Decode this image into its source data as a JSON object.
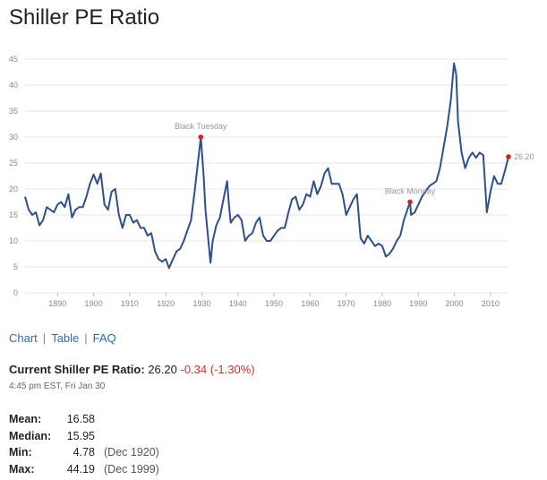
{
  "page": {
    "title": "Shiller PE Ratio"
  },
  "nav": {
    "chart": "Chart",
    "table": "Table",
    "faq": "FAQ",
    "separator": "|"
  },
  "current": {
    "label": "Current Shiller PE Ratio:",
    "value": "26.20",
    "change": "-0.34 (-1.30%)",
    "timestamp": "4:45 pm EST, Fri Jan 30"
  },
  "stats": [
    {
      "key": "Mean:",
      "value": "16.58",
      "date": ""
    },
    {
      "key": "Median:",
      "value": "15.95",
      "date": ""
    },
    {
      "key": "Min:",
      "value": "4.78",
      "date": "(Dec 1920)"
    },
    {
      "key": "Max:",
      "value": "44.19",
      "date": "(Dec 1999)"
    }
  ],
  "colors": {
    "line": "#2e4f8c",
    "marker": "#cc2222",
    "grid": "#e6e6e6",
    "link": "#2a6db5",
    "negative": "#c0392b"
  },
  "chart_data": {
    "type": "line",
    "xlim": [
      1881,
      2015
    ],
    "ylim": [
      0,
      45
    ],
    "xticks": [
      1890,
      1900,
      1910,
      1920,
      1930,
      1940,
      1950,
      1960,
      1970,
      1980,
      1990,
      2000,
      2010
    ],
    "yticks": [
      0,
      5,
      10,
      15,
      20,
      25,
      30,
      35,
      40,
      45
    ],
    "grid": "horizontal",
    "series": [
      {
        "x": [
          1881,
          1882,
          1883,
          1884,
          1885,
          1886,
          1887,
          1888,
          1889,
          1890,
          1891,
          1892,
          1893,
          1894,
          1895,
          1896,
          1897,
          1898,
          1899,
          1900,
          1901,
          1902,
          1903,
          1904,
          1905,
          1906,
          1907,
          1908,
          1909,
          1910,
          1911,
          1912,
          1913,
          1914,
          1915,
          1916,
          1917,
          1918,
          1919,
          1920,
          1920.9,
          1922,
          1923,
          1924,
          1925,
          1926,
          1927,
          1928,
          1929.7,
          1930.5,
          1931,
          1932.4,
          1933,
          1934,
          1935,
          1936,
          1937,
          1937.5,
          1938,
          1939,
          1940,
          1941,
          1942,
          1943,
          1944,
          1945,
          1946,
          1947,
          1948,
          1949,
          1950,
          1951,
          1952,
          1953,
          1954,
          1955,
          1956,
          1957,
          1958,
          1959,
          1960,
          1961,
          1962,
          1963,
          1964,
          1965,
          1966,
          1967,
          1968,
          1969,
          1970,
          1971,
          1972,
          1973,
          1974,
          1975,
          1976,
          1977,
          1978,
          1979,
          1980,
          1981,
          1982,
          1983,
          1984,
          1985,
          1986,
          1987.7,
          1988,
          1989,
          1990,
          1991,
          1992,
          1993,
          1994,
          1995,
          1996,
          1997,
          1998,
          1999,
          1999.9,
          2000.5,
          2001,
          2002,
          2003,
          2004,
          2005,
          2006,
          2007,
          2008,
          2009,
          2010,
          2011,
          2012,
          2013,
          2014,
          2015
        ],
        "y": [
          18.5,
          16,
          15,
          15.5,
          13,
          14,
          16.5,
          16,
          15.5,
          17,
          17.5,
          16.5,
          19,
          14.5,
          16,
          16.5,
          16.5,
          18.5,
          21,
          22.8,
          21,
          23,
          17,
          16,
          19.5,
          20,
          15,
          12.5,
          15,
          15,
          13.5,
          14,
          12.5,
          12.5,
          11,
          11.5,
          8,
          6.5,
          6,
          6.5,
          4.78,
          6.5,
          8,
          8.5,
          10,
          12,
          14,
          19.5,
          30,
          22.5,
          16,
          5.8,
          10,
          13,
          14.5,
          18,
          21.5,
          17,
          13.5,
          14.5,
          15,
          14,
          10,
          11,
          11.5,
          13.5,
          14.5,
          11,
          10,
          10,
          11,
          12,
          12.5,
          12.5,
          15.5,
          18,
          18.5,
          16,
          17,
          19,
          18.5,
          21.5,
          19,
          20.5,
          23,
          24,
          21,
          21,
          21,
          19,
          15,
          16.5,
          18,
          19,
          10.5,
          9.5,
          11,
          10,
          9,
          9.5,
          9,
          7,
          7.5,
          8.5,
          10,
          11,
          14,
          17.5,
          15,
          15.5,
          17,
          18.5,
          19.5,
          20.5,
          21,
          21.5,
          24,
          28,
          32,
          37,
          44.19,
          42,
          33,
          27,
          24,
          26,
          27,
          26,
          27,
          26.5,
          15.5,
          19.5,
          22.5,
          21,
          21,
          23.5,
          26.2
        ]
      }
    ],
    "annotations": [
      {
        "label": "Black Tuesday",
        "x": 1929.7,
        "y": 30
      },
      {
        "label": "Black Monday",
        "x": 1987.7,
        "y": 17.5
      },
      {
        "label": "26.20",
        "x": 2015,
        "y": 26.2
      }
    ]
  }
}
